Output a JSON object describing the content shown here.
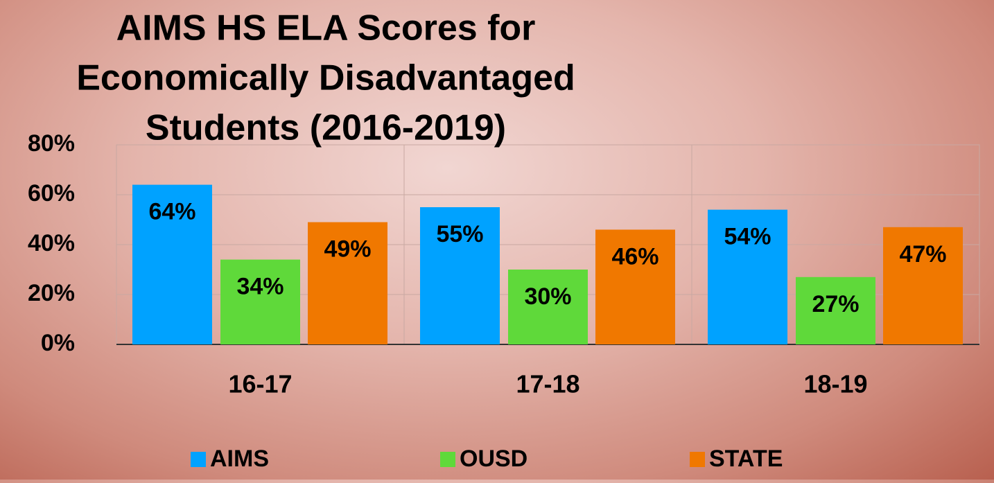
{
  "chart_data": {
    "type": "bar",
    "title_lines": [
      "AIMS HS ELA Scores for",
      "Economically Disadvantaged",
      "Students (2016-2019)"
    ],
    "categories": [
      "16-17",
      "17-18",
      "18-19"
    ],
    "series": [
      {
        "name": "AIMS",
        "color": "#00a2ff",
        "values": [
          64,
          55,
          54
        ],
        "value_labels": [
          "64%",
          "55%",
          "54%"
        ]
      },
      {
        "name": "OUSD",
        "color": "#5fd93a",
        "values": [
          34,
          30,
          27
        ],
        "value_labels": [
          "34%",
          "30%",
          "27%"
        ]
      },
      {
        "name": "STATE",
        "color": "#f07800",
        "values": [
          49,
          46,
          47
        ],
        "value_labels": [
          "49%",
          "46%",
          "47%"
        ]
      }
    ],
    "ylim": [
      0,
      80
    ],
    "yticks": [
      {
        "value": 0,
        "label": "0%"
      },
      {
        "value": 20,
        "label": "20%"
      },
      {
        "value": 40,
        "label": "40%"
      },
      {
        "value": 60,
        "label": "60%"
      },
      {
        "value": 80,
        "label": "80%"
      }
    ],
    "grid": true,
    "legend": "bottom"
  }
}
